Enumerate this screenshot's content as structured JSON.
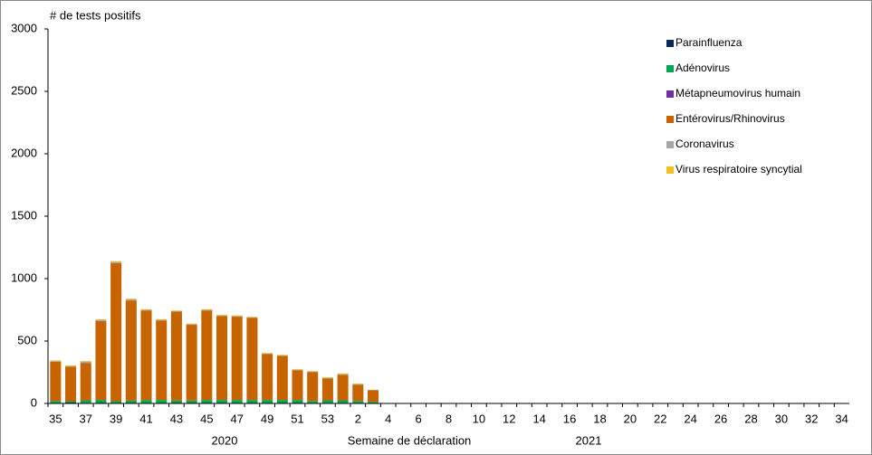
{
  "chart_data": {
    "type": "stacked-bar",
    "y_label": "# de tests positifs",
    "x_label": "Semaine de déclaration",
    "year_labels": [
      "2020",
      "2021"
    ],
    "categories": [
      "35",
      null,
      "37",
      null,
      "39",
      null,
      "41",
      null,
      "43",
      null,
      "45",
      null,
      "47",
      null,
      "49",
      null,
      "51",
      null,
      "53",
      null,
      "2",
      null,
      "4",
      null,
      "6",
      null,
      "8",
      null,
      "10",
      null,
      "12",
      null,
      "14",
      null,
      "16",
      null,
      "18",
      null,
      "20",
      null,
      "22",
      null,
      "24",
      null,
      "26",
      null,
      "28",
      null,
      "30",
      null,
      "32",
      null,
      "34"
    ],
    "ylim": [
      0,
      3000
    ],
    "yticks": [
      0,
      500,
      1000,
      1500,
      2000,
      2500,
      3000
    ],
    "legend": "top-right",
    "series": [
      {
        "name": "Parainfluenza",
        "color": "#0d2a5c",
        "values": [
          5,
          8,
          5,
          3,
          3,
          3,
          3,
          3,
          3,
          3,
          3,
          3,
          3,
          3,
          3,
          3,
          3,
          5,
          5,
          5,
          5,
          3,
          null,
          null,
          null,
          null,
          null,
          null,
          null,
          null,
          null,
          null,
          null,
          null,
          null,
          null,
          null,
          null,
          null,
          null,
          null,
          null,
          null,
          null,
          null,
          null,
          null,
          null,
          null,
          null,
          null,
          null,
          null
        ]
      },
      {
        "name": "Adénovirus",
        "color": "#00a651",
        "values": [
          15,
          10,
          20,
          25,
          15,
          20,
          25,
          25,
          20,
          20,
          25,
          25,
          25,
          25,
          25,
          25,
          25,
          15,
          20,
          20,
          15,
          10,
          null,
          null,
          null,
          null,
          null,
          null,
          null,
          null,
          null,
          null,
          null,
          null,
          null,
          null,
          null,
          null,
          null,
          null,
          null,
          null,
          null,
          null,
          null,
          null,
          null,
          null,
          null,
          null,
          null,
          null,
          null
        ]
      },
      {
        "name": "Métapneumovirus humain",
        "color": "#7030a0",
        "values": [
          0,
          0,
          0,
          0,
          0,
          0,
          0,
          0,
          0,
          0,
          0,
          0,
          0,
          0,
          0,
          0,
          0,
          0,
          0,
          0,
          0,
          0,
          null,
          null,
          null,
          null,
          null,
          null,
          null,
          null,
          null,
          null,
          null,
          null,
          null,
          null,
          null,
          null,
          null,
          null,
          null,
          null,
          null,
          null,
          null,
          null,
          null,
          null,
          null,
          null,
          null,
          null,
          null
        ]
      },
      {
        "name": "Entérovirus/Rhinovirus",
        "color": "#c86400",
        "values": [
          315,
          277,
          300,
          632,
          1107,
          802,
          717,
          637,
          712,
          607,
          717,
          672,
          667,
          657,
          367,
          352,
          237,
          230,
          175,
          205,
          130,
          92,
          null,
          null,
          null,
          null,
          null,
          null,
          null,
          null,
          null,
          null,
          null,
          null,
          null,
          null,
          null,
          null,
          null,
          null,
          null,
          null,
          null,
          null,
          null,
          null,
          null,
          null,
          null,
          null,
          null,
          null,
          null
        ]
      },
      {
        "name": "Coronavirus",
        "color": "#a6a6a6",
        "values": [
          5,
          5,
          10,
          10,
          10,
          10,
          5,
          5,
          5,
          5,
          5,
          5,
          5,
          5,
          5,
          5,
          5,
          5,
          5,
          5,
          5,
          3,
          null,
          null,
          null,
          null,
          null,
          null,
          null,
          null,
          null,
          null,
          null,
          null,
          null,
          null,
          null,
          null,
          null,
          null,
          null,
          null,
          null,
          null,
          null,
          null,
          null,
          null,
          null,
          null,
          null,
          null,
          null
        ]
      },
      {
        "name": "Virus respiratoire syncytial",
        "color": "#f0c020",
        "values": [
          5,
          5,
          5,
          5,
          5,
          5,
          5,
          5,
          5,
          5,
          5,
          5,
          5,
          5,
          5,
          5,
          5,
          5,
          5,
          5,
          5,
          2,
          null,
          null,
          null,
          null,
          null,
          null,
          null,
          null,
          null,
          null,
          null,
          null,
          null,
          null,
          null,
          null,
          null,
          null,
          null,
          null,
          null,
          null,
          null,
          null,
          null,
          null,
          null,
          null,
          null,
          null,
          null
        ]
      }
    ]
  }
}
